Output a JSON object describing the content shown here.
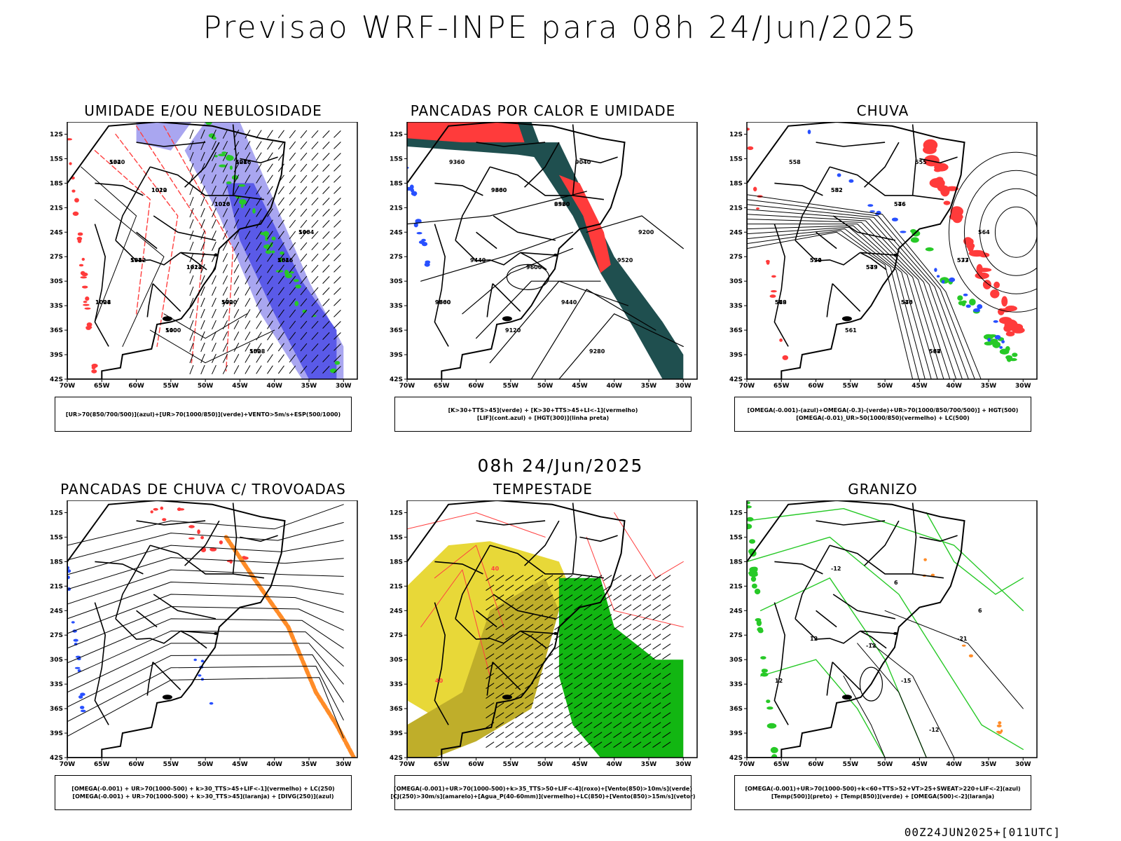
{
  "header": {
    "title": "Previsao WRF-INPE  para 08h 24/Jun/2025"
  },
  "valid_time_label": "08h 24/Jun/2025",
  "run_label": "00Z24JUN2025+[011UTC]",
  "colors": {
    "humid_blue": "#5a5ae8",
    "humid_lavender": "#a9a6f0",
    "green": "#27c927",
    "red": "#ff3b3b",
    "dark_teal": "#1f4f4f",
    "blue": "#2850ff",
    "orange": "#ff8c28",
    "yellow": "#e8d838",
    "olive": "#bfae2a",
    "bright_green": "#12b612",
    "dashed_red": "#ff4040"
  },
  "chart_data": [
    {
      "type": "map",
      "title": "UMIDADE E/OU NEBULOSIDADE",
      "xlabel": "longitude",
      "ylabel": "latitude",
      "xlim": [
        -70,
        -28
      ],
      "ylim": [
        -42,
        -10.5
      ],
      "x_ticks": [
        "70W",
        "65W",
        "60W",
        "55W",
        "50W",
        "45W",
        "40W",
        "35W",
        "30W"
      ],
      "y_ticks": [
        "12S",
        "15S",
        "18S",
        "21S",
        "24S",
        "27S",
        "30S",
        "33S",
        "36S",
        "39S",
        "42S"
      ],
      "legend": [
        "[UR>70(850/700/500)](azul)+[UR>70(1000/850)](verde)+VENTO>5m/s+ESP(500/1000)"
      ],
      "contour_labels": [
        "1020",
        "1024",
        "1020",
        "1024",
        "1020",
        "1016",
        "1012",
        "1008",
        "1004",
        "1000",
        "1020",
        "1016",
        "1012",
        "1008",
        "1016",
        "1012",
        "570",
        "564",
        "558",
        "552",
        "546",
        "540",
        "534",
        "528"
      ]
    },
    {
      "type": "map",
      "title": "PANCADAS POR CALOR E UMIDADE",
      "xlabel": "longitude",
      "ylabel": "latitude",
      "xlim": [
        -70,
        -28
      ],
      "ylim": [
        -42,
        -10.5
      ],
      "x_ticks": [
        "70W",
        "65W",
        "60W",
        "55W",
        "50W",
        "45W",
        "40W",
        "35W",
        "30W"
      ],
      "y_ticks": [
        "12S",
        "15S",
        "18S",
        "21S",
        "24S",
        "27S",
        "30S",
        "33S",
        "36S",
        "39S",
        "42S"
      ],
      "legend": [
        "[K>30+TTS>45](verde) + [K>30+TTS>45+LI<-1](vermelho)",
        "[LIF](cont.azul) + [HGT(300)](linha preta)"
      ],
      "contour_labels": [
        "9600",
        "9600",
        "9520",
        "9600",
        "9440",
        "9520",
        "9440",
        "9280",
        "9200",
        "9120",
        "9360",
        "9040",
        "9360",
        "9360",
        "8960"
      ]
    },
    {
      "type": "map",
      "title": "CHUVA",
      "xlabel": "longitude",
      "ylabel": "latitude",
      "xlim": [
        -70,
        -28
      ],
      "ylim": [
        -42,
        -10.5
      ],
      "x_ticks": [
        "70W",
        "65W",
        "60W",
        "55W",
        "50W",
        "45W",
        "40W",
        "35W",
        "30W"
      ],
      "y_ticks": [
        "12S",
        "15S",
        "18S",
        "21S",
        "24S",
        "27S",
        "30S",
        "33S",
        "36S",
        "39S",
        "42S"
      ],
      "legend": [
        "[OMEGA(-0.001)-(azul)+OMEGA(-0.3)-(verde)+UR>70(1000/850/700/500)] + HGT(500)",
        "[OMEGA(-0.01)_UR>50(1000/850)(vermelho) + LC(500)"
      ],
      "contour_labels": [
        "582",
        "588",
        "576",
        "579",
        "576",
        "573",
        "570",
        "567",
        "564",
        "561",
        "558",
        "555",
        "552",
        "549",
        "546",
        "543",
        "540",
        "537",
        "534",
        "588"
      ]
    },
    {
      "type": "map",
      "title": "PANCADAS DE CHUVA C/ TROVOADAS",
      "xlabel": "longitude",
      "ylabel": "latitude",
      "xlim": [
        -70,
        -28
      ],
      "ylim": [
        -42,
        -10.5
      ],
      "x_ticks": [
        "70W",
        "65W",
        "60W",
        "55W",
        "50W",
        "45W",
        "40W",
        "35W",
        "30W"
      ],
      "y_ticks": [
        "12S",
        "15S",
        "18S",
        "21S",
        "24S",
        "27S",
        "30S",
        "33S",
        "36S",
        "39S",
        "42S"
      ],
      "legend": [
        "[OMEGA(-0.001) + UR>70(1000-500) + k>30_TTS>45+LIF<-1](vermelho) + LC(250)",
        "[OMEGA(-0.001) + UR>70(1000-500) + k>30_TTS>45](laranja) + [DIVG(250)](azul)"
      ],
      "contour_labels": []
    },
    {
      "type": "map",
      "title": "TEMPESTADE",
      "xlabel": "longitude",
      "ylabel": "latitude",
      "xlim": [
        -70,
        -28
      ],
      "ylim": [
        -42,
        -10.5
      ],
      "x_ticks": [
        "70W",
        "65W",
        "60W",
        "55W",
        "50W",
        "45W",
        "40W",
        "35W",
        "30W"
      ],
      "y_ticks": [
        "12S",
        "15S",
        "18S",
        "21S",
        "24S",
        "27S",
        "30S",
        "33S",
        "36S",
        "39S",
        "42S"
      ],
      "legend": [
        "[OMEGA(-0.001)+UR>70(1000-500)+k>35_TTS>50+LIF<-4](roxo)+[Vento(850)>10m/s](verde)",
        "[CJ(250)>30m/s](amarelo)+[Agua_P(40-60mm)](vermelho)+LC(850)+[Vento(850)>15m/s](vetor)"
      ],
      "contour_labels": [
        "40",
        "40"
      ]
    },
    {
      "type": "map",
      "title": "GRANIZO",
      "xlabel": "longitude",
      "ylabel": "latitude",
      "xlim": [
        -70,
        -28
      ],
      "ylim": [
        -42,
        -10.5
      ],
      "x_ticks": [
        "70W",
        "65W",
        "60W",
        "55W",
        "50W",
        "45W",
        "40W",
        "35W",
        "30W"
      ],
      "y_ticks": [
        "12S",
        "15S",
        "18S",
        "21S",
        "24S",
        "27S",
        "30S",
        "33S",
        "36S",
        "39S",
        "42S"
      ],
      "legend": [
        "[OMEGA(-0.001)+UR>70(1000-500)+k<60+TTS>52+VT>25+SWEAT>220+LIF<-2](azul)",
        "[Temp(500)](preto) + [Temp(850)](verde) + [OMEGA(500)<-2](laranja)"
      ],
      "contour_labels": [
        "-12",
        "12",
        "6",
        "-12",
        "-15",
        "-21",
        "12",
        "-12",
        "6"
      ]
    }
  ]
}
